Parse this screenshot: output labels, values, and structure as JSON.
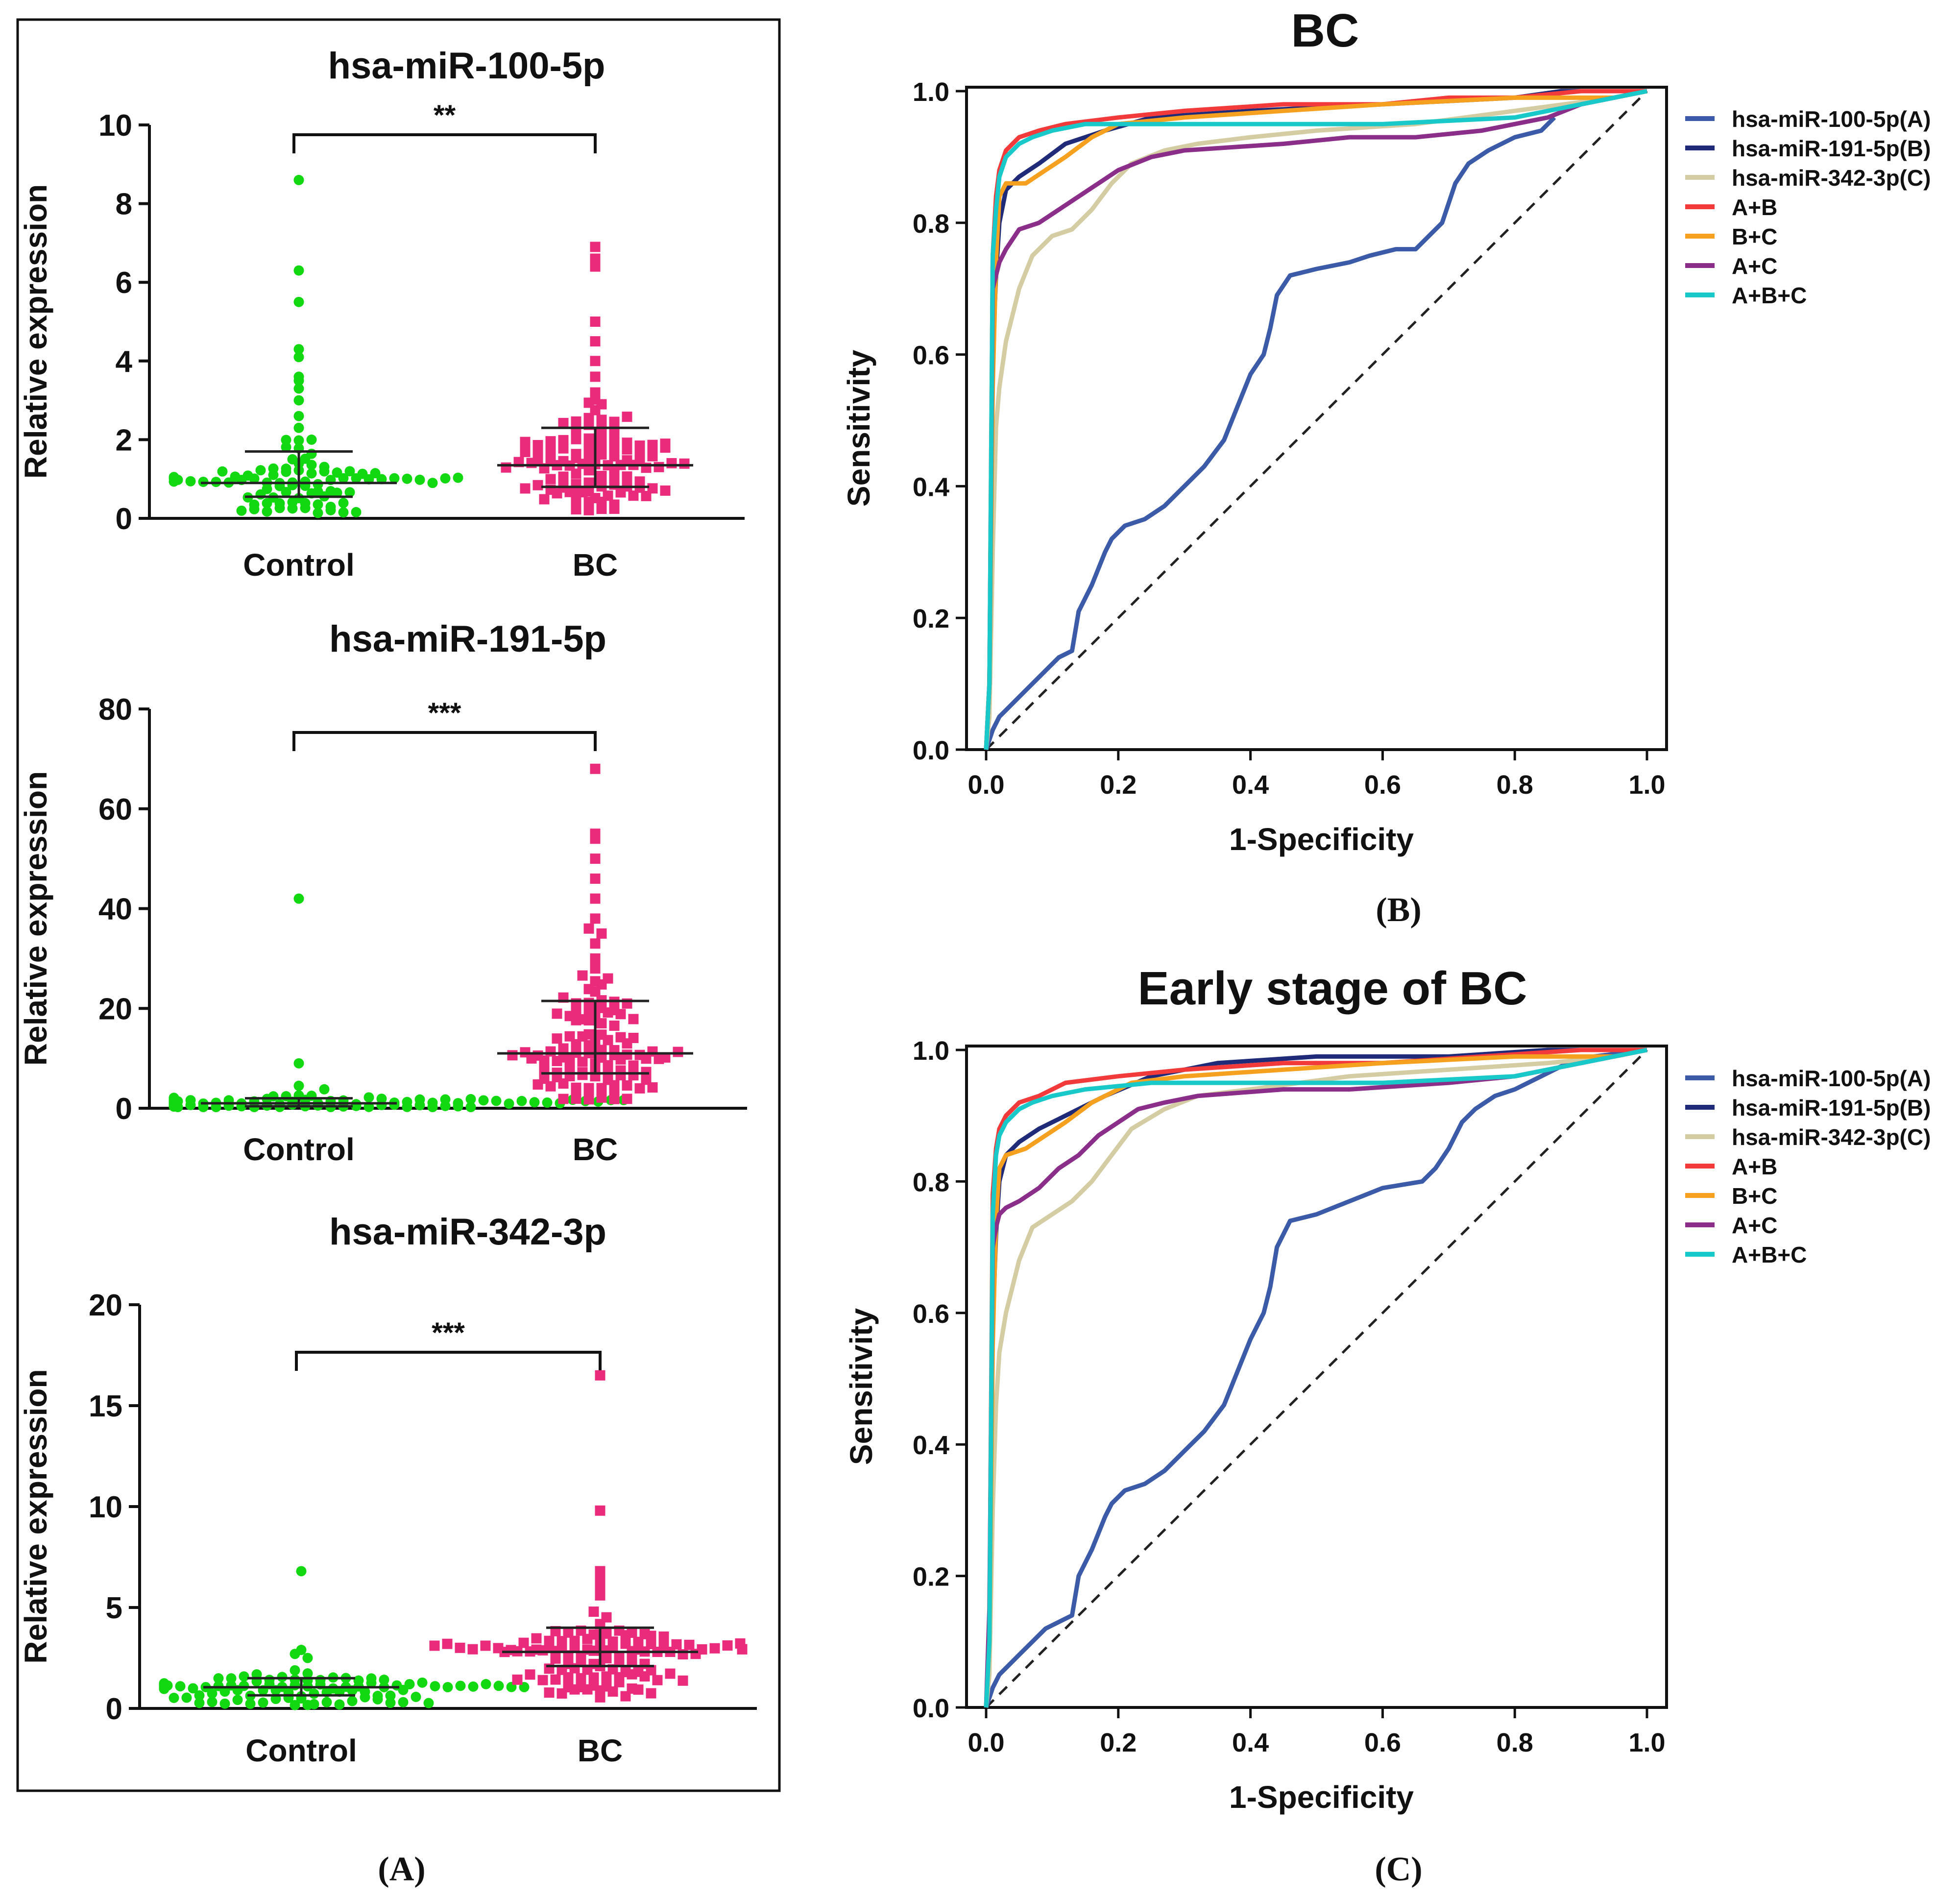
{
  "panel_labels": {
    "A": "(A)",
    "B": "(B)",
    "C": "(C)"
  },
  "chart_data": [
    {
      "id": "dot1",
      "type": "scatter",
      "title": "hsa-miR-100-5p",
      "ylabel": "Relative expression",
      "xlabel": "",
      "categories": [
        "Control",
        "BC"
      ],
      "ylim": [
        0,
        10
      ],
      "yticks": [
        "0",
        "2",
        "4",
        "6",
        "8",
        "10"
      ],
      "significance": "**",
      "colors": {
        "Control": "#11d811",
        "BC": "#ea2b7c"
      },
      "groups": [
        {
          "name": "Control",
          "n": 96,
          "marker": "circle",
          "median": 0.9,
          "q1": 0.55,
          "q3": 1.7,
          "outliers": [
            8.6,
            6.3,
            5.5,
            4.3,
            4.1,
            3.6,
            3.5,
            3.3,
            3.0,
            2.6,
            2.3,
            2.0
          ]
        },
        {
          "name": "BC",
          "n": 118,
          "marker": "square",
          "median": 1.35,
          "q1": 0.8,
          "q3": 2.3,
          "outliers": [
            6.9,
            6.6,
            6.4,
            5.0,
            4.5,
            4.0,
            3.6,
            3.2,
            2.9
          ]
        }
      ]
    },
    {
      "id": "dot2",
      "type": "scatter",
      "title": "hsa-miR-191-5p",
      "ylabel": "Relative expression",
      "xlabel": "",
      "categories": [
        "Control",
        "BC"
      ],
      "ylim": [
        0,
        80
      ],
      "yticks": [
        "0",
        "20",
        "40",
        "60",
        "80"
      ],
      "significance": "***",
      "colors": {
        "Control": "#11d811",
        "BC": "#ea2b7c"
      },
      "groups": [
        {
          "name": "Control",
          "n": 88,
          "marker": "circle",
          "median": 1.0,
          "q1": 0.4,
          "q3": 2.0,
          "outliers": [
            42,
            9.0,
            4.5,
            3.8
          ]
        },
        {
          "name": "BC",
          "n": 118,
          "marker": "square",
          "median": 11.0,
          "q1": 7.0,
          "q3": 21.5,
          "outliers": [
            68,
            55,
            54,
            50,
            46,
            42,
            38,
            36,
            35,
            33,
            30,
            28,
            26
          ]
        }
      ]
    },
    {
      "id": "dot3",
      "type": "scatter",
      "title": "hsa-miR-342-3p",
      "ylabel": "Relative expression",
      "xlabel": "",
      "categories": [
        "Control",
        "BC"
      ],
      "ylim": [
        0,
        20
      ],
      "yticks": [
        "0",
        "5",
        "10",
        "15",
        "20"
      ],
      "significance": "***",
      "colors": {
        "Control": "#11d811",
        "BC": "#ea2b7c"
      },
      "groups": [
        {
          "name": "Control",
          "n": 96,
          "marker": "circle",
          "median": 1.05,
          "q1": 0.65,
          "q3": 1.5,
          "outliers": [
            6.8,
            2.9,
            2.7,
            2.5
          ]
        },
        {
          "name": "BC",
          "n": 118,
          "marker": "square",
          "median": 2.8,
          "q1": 2.1,
          "q3": 4.0,
          "outliers": [
            16.5,
            9.8,
            6.8,
            6.5,
            6.0,
            5.6
          ]
        }
      ]
    },
    {
      "id": "roc1",
      "type": "line",
      "title": "BC",
      "xlabel": "1-Specificity",
      "ylabel": "Sensitivity",
      "xlim": [
        0,
        1
      ],
      "ylim": [
        0,
        1
      ],
      "xticks": [
        "0.0",
        "0.2",
        "0.4",
        "0.6",
        "0.8",
        "1.0"
      ],
      "yticks": [
        "0.0",
        "0.2",
        "0.4",
        "0.6",
        "0.8",
        "1.0"
      ],
      "reference_line": "dashed diagonal",
      "series": [
        {
          "name": "hsa-miR-100-5p(A)",
          "color": "#3b5aa8",
          "x": [
            0,
            0.01,
            0.02,
            0.03,
            0.05,
            0.07,
            0.09,
            0.11,
            0.13,
            0.14,
            0.16,
            0.18,
            0.19,
            0.21,
            0.24,
            0.27,
            0.3,
            0.33,
            0.36,
            0.38,
            0.4,
            0.42,
            0.43,
            0.44,
            0.46,
            0.5,
            0.55,
            0.58,
            0.62,
            0.65,
            0.67,
            0.69,
            0.71,
            0.73,
            0.76,
            0.8,
            0.84,
            0.86
          ],
          "y": [
            0,
            0.03,
            0.05,
            0.06,
            0.08,
            0.1,
            0.12,
            0.14,
            0.15,
            0.21,
            0.25,
            0.3,
            0.32,
            0.34,
            0.35,
            0.37,
            0.4,
            0.43,
            0.47,
            0.52,
            0.57,
            0.6,
            0.64,
            0.69,
            0.72,
            0.73,
            0.74,
            0.75,
            0.76,
            0.76,
            0.78,
            0.8,
            0.86,
            0.89,
            0.91,
            0.93,
            0.94,
            0.96
          ]
        },
        {
          "name": "hsa-miR-191-5p(B)",
          "color": "#1f2a78",
          "x": [
            0,
            0.005,
            0.01,
            0.015,
            0.02,
            0.03,
            0.05,
            0.08,
            0.12,
            0.18,
            0.25,
            0.4,
            0.6,
            0.8,
            0.87,
            0.95,
            1.0
          ],
          "y": [
            0,
            0.1,
            0.6,
            0.72,
            0.8,
            0.85,
            0.87,
            0.89,
            0.92,
            0.94,
            0.96,
            0.97,
            0.98,
            0.99,
            1.0,
            1.0,
            1.0
          ]
        },
        {
          "name": "hsa-miR-342-3p(C)",
          "color": "#d4cca2",
          "x": [
            0,
            0.005,
            0.01,
            0.015,
            0.02,
            0.03,
            0.05,
            0.07,
            0.1,
            0.13,
            0.16,
            0.19,
            0.22,
            0.27,
            0.32,
            0.4,
            0.5,
            0.65,
            0.8,
            0.95,
            1.0
          ],
          "y": [
            0,
            0.05,
            0.3,
            0.49,
            0.55,
            0.62,
            0.7,
            0.75,
            0.78,
            0.79,
            0.82,
            0.86,
            0.89,
            0.91,
            0.92,
            0.93,
            0.94,
            0.95,
            0.97,
            0.99,
            1.0
          ]
        },
        {
          "name": "A+B",
          "color": "#f23a3a",
          "x": [
            0,
            0.005,
            0.01,
            0.015,
            0.02,
            0.03,
            0.05,
            0.08,
            0.12,
            0.2,
            0.3,
            0.45,
            0.6,
            0.7,
            0.8,
            0.9,
            1.0
          ],
          "y": [
            0,
            0.1,
            0.75,
            0.84,
            0.88,
            0.91,
            0.93,
            0.94,
            0.95,
            0.96,
            0.97,
            0.98,
            0.98,
            0.99,
            0.99,
            1.0,
            1.0
          ]
        },
        {
          "name": "B+C",
          "color": "#f5a01e",
          "x": [
            0,
            0.005,
            0.01,
            0.015,
            0.02,
            0.03,
            0.06,
            0.09,
            0.12,
            0.16,
            0.2,
            0.3,
            0.45,
            0.6,
            0.8,
            0.95,
            1.0
          ],
          "y": [
            0,
            0.1,
            0.55,
            0.74,
            0.84,
            0.86,
            0.86,
            0.88,
            0.9,
            0.93,
            0.95,
            0.96,
            0.97,
            0.98,
            0.99,
            0.99,
            1.0
          ]
        },
        {
          "name": "A+C",
          "color": "#8a2e8a",
          "x": [
            0,
            0.005,
            0.01,
            0.015,
            0.02,
            0.03,
            0.05,
            0.08,
            0.11,
            0.14,
            0.17,
            0.2,
            0.25,
            0.3,
            0.45,
            0.55,
            0.65,
            0.75,
            0.8,
            0.85,
            0.9,
            1.0
          ],
          "y": [
            0,
            0.1,
            0.7,
            0.72,
            0.74,
            0.76,
            0.79,
            0.8,
            0.82,
            0.84,
            0.86,
            0.88,
            0.9,
            0.91,
            0.92,
            0.93,
            0.93,
            0.94,
            0.95,
            0.96,
            0.98,
            1.0
          ]
        },
        {
          "name": "A+B+C",
          "color": "#19c8c8",
          "x": [
            0,
            0.005,
            0.01,
            0.015,
            0.02,
            0.03,
            0.05,
            0.07,
            0.1,
            0.15,
            0.25,
            0.4,
            0.6,
            0.8,
            0.9,
            1.0
          ],
          "y": [
            0,
            0.1,
            0.75,
            0.82,
            0.87,
            0.9,
            0.92,
            0.93,
            0.94,
            0.95,
            0.95,
            0.95,
            0.95,
            0.96,
            0.98,
            1.0
          ]
        }
      ]
    },
    {
      "id": "roc2",
      "type": "line",
      "title": "Early stage of BC",
      "xlabel": "1-Specificity",
      "ylabel": "Sensitivity",
      "xlim": [
        0,
        1
      ],
      "ylim": [
        0,
        1
      ],
      "xticks": [
        "0.0",
        "0.2",
        "0.4",
        "0.6",
        "0.8",
        "1.0"
      ],
      "yticks": [
        "0.0",
        "0.2",
        "0.4",
        "0.6",
        "0.8",
        "1.0"
      ],
      "reference_line": "dashed diagonal",
      "series": [
        {
          "name": "hsa-miR-100-5p(A)",
          "color": "#3b5aa8",
          "x": [
            0,
            0.01,
            0.02,
            0.03,
            0.05,
            0.07,
            0.09,
            0.11,
            0.13,
            0.14,
            0.16,
            0.18,
            0.19,
            0.21,
            0.24,
            0.27,
            0.3,
            0.33,
            0.36,
            0.38,
            0.4,
            0.42,
            0.43,
            0.44,
            0.46,
            0.5,
            0.55,
            0.6,
            0.66,
            0.68,
            0.7,
            0.72,
            0.74,
            0.77,
            0.8,
            0.84,
            0.88,
            0.92,
            1.0
          ],
          "y": [
            0,
            0.03,
            0.05,
            0.06,
            0.08,
            0.1,
            0.12,
            0.13,
            0.14,
            0.2,
            0.24,
            0.29,
            0.31,
            0.33,
            0.34,
            0.36,
            0.39,
            0.42,
            0.46,
            0.51,
            0.56,
            0.6,
            0.64,
            0.7,
            0.74,
            0.75,
            0.77,
            0.79,
            0.8,
            0.82,
            0.85,
            0.89,
            0.91,
            0.93,
            0.94,
            0.96,
            0.98,
            0.99,
            1.0
          ]
        },
        {
          "name": "hsa-miR-191-5p(B)",
          "color": "#1f2a78",
          "x": [
            0,
            0.005,
            0.01,
            0.015,
            0.02,
            0.03,
            0.05,
            0.08,
            0.12,
            0.18,
            0.25,
            0.35,
            0.5,
            0.7,
            0.85,
            1.0
          ],
          "y": [
            0,
            0.1,
            0.58,
            0.72,
            0.8,
            0.84,
            0.86,
            0.88,
            0.9,
            0.93,
            0.96,
            0.98,
            0.99,
            0.99,
            1.0,
            1.0
          ]
        },
        {
          "name": "hsa-miR-342-3p(C)",
          "color": "#d4cca2",
          "x": [
            0,
            0.005,
            0.01,
            0.015,
            0.02,
            0.03,
            0.05,
            0.07,
            0.1,
            0.13,
            0.16,
            0.19,
            0.22,
            0.27,
            0.32,
            0.4,
            0.55,
            0.7,
            0.85,
            0.95,
            1.0
          ],
          "y": [
            0,
            0.05,
            0.3,
            0.46,
            0.54,
            0.6,
            0.68,
            0.73,
            0.75,
            0.77,
            0.8,
            0.84,
            0.88,
            0.91,
            0.93,
            0.94,
            0.96,
            0.97,
            0.98,
            0.99,
            1.0
          ]
        },
        {
          "name": "A+B",
          "color": "#f23a3a",
          "x": [
            0,
            0.005,
            0.01,
            0.015,
            0.02,
            0.03,
            0.05,
            0.08,
            0.12,
            0.2,
            0.3,
            0.45,
            0.6,
            0.75,
            0.9,
            1.0
          ],
          "y": [
            0,
            0.12,
            0.78,
            0.85,
            0.88,
            0.9,
            0.92,
            0.93,
            0.95,
            0.96,
            0.97,
            0.98,
            0.98,
            0.99,
            1.0,
            1.0
          ]
        },
        {
          "name": "B+C",
          "color": "#f5a01e",
          "x": [
            0,
            0.005,
            0.01,
            0.015,
            0.02,
            0.03,
            0.06,
            0.09,
            0.12,
            0.16,
            0.22,
            0.3,
            0.45,
            0.6,
            0.8,
            0.95,
            1.0
          ],
          "y": [
            0,
            0.1,
            0.55,
            0.74,
            0.82,
            0.84,
            0.85,
            0.87,
            0.89,
            0.92,
            0.95,
            0.96,
            0.97,
            0.98,
            0.99,
            0.99,
            1.0
          ]
        },
        {
          "name": "A+C",
          "color": "#8a2e8a",
          "x": [
            0,
            0.005,
            0.01,
            0.015,
            0.02,
            0.03,
            0.05,
            0.08,
            0.11,
            0.14,
            0.17,
            0.2,
            0.23,
            0.27,
            0.32,
            0.45,
            0.55,
            0.7,
            0.8,
            0.85,
            0.9,
            1.0
          ],
          "y": [
            0,
            0.15,
            0.7,
            0.73,
            0.75,
            0.76,
            0.77,
            0.79,
            0.82,
            0.84,
            0.87,
            0.89,
            0.91,
            0.92,
            0.93,
            0.94,
            0.94,
            0.95,
            0.96,
            0.97,
            0.98,
            1.0
          ]
        },
        {
          "name": "A+B+C",
          "color": "#19c8c8",
          "x": [
            0,
            0.005,
            0.01,
            0.015,
            0.02,
            0.03,
            0.05,
            0.07,
            0.1,
            0.15,
            0.25,
            0.4,
            0.6,
            0.8,
            0.9,
            1.0
          ],
          "y": [
            0,
            0.1,
            0.75,
            0.84,
            0.87,
            0.89,
            0.91,
            0.92,
            0.93,
            0.94,
            0.95,
            0.95,
            0.95,
            0.96,
            0.98,
            1.0
          ]
        }
      ]
    }
  ]
}
